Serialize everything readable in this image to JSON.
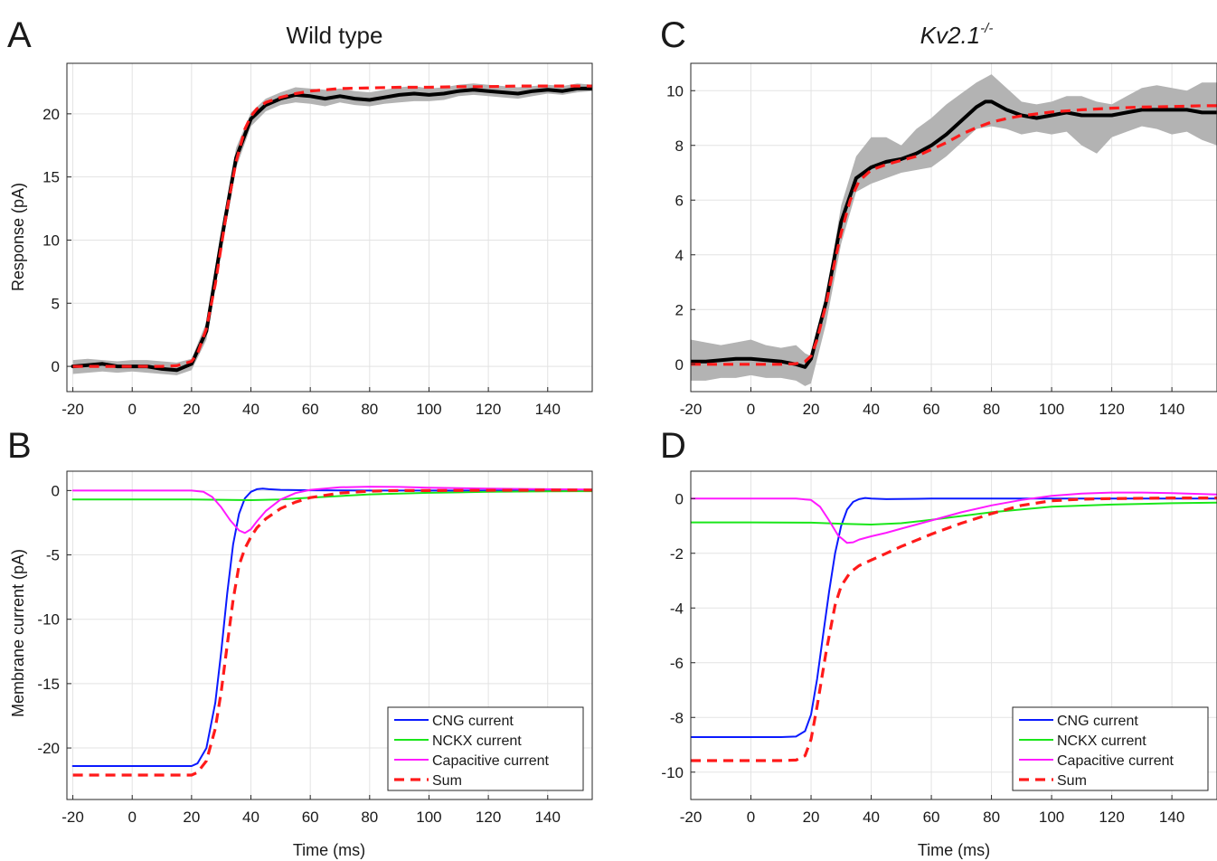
{
  "chart_data": [
    {
      "panel": "A",
      "title": "Wild type",
      "title_italic": false,
      "type": "line",
      "xlabel": "",
      "ylabel": "Response (pA)",
      "xlim": [
        -22,
        155
      ],
      "ylim": [
        -2,
        24
      ],
      "xticks": [
        -20,
        0,
        20,
        40,
        60,
        80,
        100,
        120,
        140
      ],
      "yticks": [
        0,
        5,
        10,
        15,
        20
      ],
      "grid": true,
      "band": {
        "x": [
          -20,
          -15,
          -10,
          -5,
          0,
          5,
          10,
          15,
          20,
          25,
          30,
          35,
          40,
          45,
          50,
          55,
          60,
          65,
          70,
          75,
          80,
          85,
          90,
          95,
          100,
          105,
          110,
          115,
          120,
          125,
          130,
          135,
          140,
          145,
          150,
          155
        ],
        "upper": [
          0.5,
          0.6,
          0.5,
          0.4,
          0.5,
          0.5,
          0.4,
          0.3,
          0.6,
          3.5,
          10.8,
          17.3,
          20.1,
          21.2,
          21.7,
          22.1,
          22.0,
          21.9,
          22.0,
          21.8,
          21.7,
          21.9,
          22.1,
          22.2,
          22.0,
          22.1,
          22.3,
          22.4,
          22.3,
          22.2,
          22.1,
          22.2,
          22.3,
          22.2,
          22.4,
          22.3
        ],
        "lower": [
          -0.6,
          -0.5,
          -0.4,
          -0.5,
          -0.4,
          -0.5,
          -0.6,
          -0.7,
          -0.3,
          2.1,
          9.0,
          15.7,
          19.0,
          20.2,
          20.7,
          20.9,
          20.8,
          20.6,
          20.9,
          20.7,
          20.6,
          20.8,
          20.9,
          21.0,
          21.0,
          21.1,
          21.4,
          21.5,
          21.4,
          21.3,
          21.2,
          21.4,
          21.6,
          21.5,
          21.7,
          21.8
        ]
      },
      "series": [
        {
          "color": "#000000",
          "width": 4,
          "dash": "",
          "x": [
            -20,
            -15,
            -10,
            -5,
            0,
            5,
            10,
            15,
            20,
            25,
            30,
            35,
            40,
            45,
            50,
            55,
            60,
            65,
            70,
            75,
            80,
            85,
            90,
            95,
            100,
            105,
            110,
            115,
            120,
            125,
            130,
            135,
            140,
            145,
            150,
            155
          ],
          "y": [
            0.0,
            0.1,
            0.2,
            0.0,
            0.0,
            0.0,
            -0.2,
            -0.3,
            0.2,
            2.8,
            9.9,
            16.5,
            19.6,
            20.7,
            21.2,
            21.5,
            21.4,
            21.2,
            21.4,
            21.2,
            21.1,
            21.3,
            21.5,
            21.6,
            21.5,
            21.6,
            21.8,
            21.9,
            21.8,
            21.7,
            21.6,
            21.8,
            21.9,
            21.8,
            22.0,
            22.0
          ]
        },
        {
          "color": "#ff1a1a",
          "width": 3.2,
          "dash": "11,7",
          "x": [
            -20,
            -10,
            0,
            10,
            15,
            20,
            22,
            25,
            28,
            30,
            32,
            35,
            38,
            40,
            42,
            45,
            50,
            55,
            60,
            70,
            80,
            90,
            100,
            110,
            120,
            130,
            140,
            150,
            155
          ],
          "y": [
            0.0,
            0.0,
            0.0,
            0.0,
            0.05,
            0.4,
            1.0,
            3.0,
            6.5,
            9.5,
            12.5,
            16.2,
            18.8,
            19.8,
            20.4,
            20.9,
            21.3,
            21.6,
            21.8,
            22.0,
            22.05,
            22.1,
            22.1,
            22.15,
            22.15,
            22.2,
            22.2,
            22.2,
            22.2
          ]
        }
      ],
      "legend": null
    },
    {
      "panel": "C",
      "title": "Kv2.1",
      "title_sup": "-/-",
      "title_italic": true,
      "type": "line",
      "xlabel": "",
      "ylabel": "",
      "xlim": [
        -20,
        155
      ],
      "ylim": [
        -1,
        11
      ],
      "xticks": [
        -20,
        0,
        20,
        40,
        60,
        80,
        100,
        120,
        140
      ],
      "yticks": [
        0,
        2,
        4,
        6,
        8,
        10
      ],
      "grid": true,
      "band": {
        "x": [
          -20,
          -15,
          -10,
          -5,
          0,
          5,
          10,
          15,
          18,
          20,
          25,
          30,
          35,
          40,
          45,
          50,
          55,
          60,
          65,
          70,
          75,
          80,
          85,
          90,
          95,
          100,
          105,
          110,
          115,
          120,
          125,
          130,
          135,
          140,
          145,
          150,
          155
        ],
        "upper": [
          0.9,
          0.8,
          0.7,
          0.8,
          0.9,
          0.7,
          0.6,
          0.7,
          0.4,
          0.3,
          2.5,
          5.8,
          7.6,
          8.3,
          8.3,
          8.0,
          8.6,
          9.0,
          9.5,
          9.9,
          10.3,
          10.6,
          10.1,
          9.6,
          9.5,
          9.6,
          9.8,
          9.8,
          9.6,
          9.5,
          9.8,
          10.1,
          10.2,
          10.1,
          10.0,
          10.3,
          10.3
        ],
        "lower": [
          -0.6,
          -0.6,
          -0.5,
          -0.5,
          -0.4,
          -0.5,
          -0.5,
          -0.6,
          -0.8,
          -0.7,
          1.5,
          4.4,
          6.3,
          6.6,
          6.8,
          7.0,
          7.1,
          7.2,
          7.6,
          8.1,
          8.6,
          8.7,
          8.6,
          8.4,
          8.5,
          8.4,
          8.5,
          8.0,
          7.7,
          8.3,
          8.5,
          8.7,
          8.6,
          8.4,
          8.5,
          8.2,
          8.0
        ]
      },
      "series": [
        {
          "color": "#000000",
          "width": 4,
          "dash": "",
          "x": [
            -20,
            -15,
            -10,
            -5,
            0,
            5,
            10,
            15,
            18,
            20,
            25,
            30,
            35,
            40,
            45,
            50,
            55,
            60,
            65,
            70,
            75,
            78,
            80,
            85,
            90,
            95,
            100,
            105,
            110,
            115,
            120,
            125,
            130,
            135,
            140,
            145,
            150,
            155
          ],
          "y": [
            0.1,
            0.1,
            0.15,
            0.2,
            0.2,
            0.15,
            0.1,
            0.0,
            -0.1,
            0.2,
            2.3,
            5.2,
            6.8,
            7.2,
            7.4,
            7.5,
            7.7,
            8.0,
            8.4,
            8.9,
            9.4,
            9.6,
            9.6,
            9.3,
            9.1,
            9.0,
            9.1,
            9.2,
            9.1,
            9.1,
            9.1,
            9.2,
            9.3,
            9.3,
            9.3,
            9.3,
            9.2,
            9.2
          ]
        },
        {
          "color": "#ff1a1a",
          "width": 3.2,
          "dash": "11,7",
          "x": [
            -20,
            -10,
            0,
            10,
            15,
            18,
            20,
            22,
            25,
            28,
            30,
            33,
            36,
            40,
            45,
            50,
            55,
            60,
            65,
            70,
            75,
            80,
            85,
            90,
            100,
            110,
            120,
            130,
            140,
            150,
            155
          ],
          "y": [
            0.0,
            0.0,
            0.0,
            0.0,
            0.02,
            0.1,
            0.3,
            0.9,
            2.2,
            3.8,
            4.8,
            6.0,
            6.7,
            7.1,
            7.3,
            7.45,
            7.6,
            7.85,
            8.1,
            8.4,
            8.65,
            8.85,
            8.98,
            9.08,
            9.22,
            9.3,
            9.36,
            9.4,
            9.42,
            9.45,
            9.45
          ]
        }
      ],
      "legend": null
    },
    {
      "panel": "B",
      "title": "",
      "type": "line",
      "xlabel": "Time (ms)",
      "ylabel": "Membrane current (pA)",
      "xlim": [
        -22,
        155
      ],
      "ylim": [
        -24,
        1.5
      ],
      "xticks": [
        -20,
        0,
        20,
        40,
        60,
        80,
        100,
        120,
        140
      ],
      "yticks": [
        0,
        -5,
        -10,
        -15,
        -20
      ],
      "grid": true,
      "band": null,
      "series": [
        {
          "name": "CNG current",
          "color": "#0a1aff",
          "width": 2,
          "dash": "",
          "x": [
            -20,
            0,
            10,
            20,
            22,
            25,
            28,
            30,
            32,
            34,
            36,
            38,
            40,
            42,
            44,
            46,
            50,
            60,
            80,
            100,
            120,
            140,
            155
          ],
          "y": [
            -21.4,
            -21.4,
            -21.4,
            -21.4,
            -21.2,
            -20.0,
            -16.5,
            -12.5,
            -8.0,
            -4.2,
            -1.8,
            -0.6,
            -0.1,
            0.1,
            0.15,
            0.1,
            0.05,
            0.02,
            0.0,
            0.0,
            0.0,
            0.0,
            0.0
          ]
        },
        {
          "name": "NCKX current",
          "color": "#1ae61a",
          "width": 2,
          "dash": "",
          "x": [
            -20,
            0,
            20,
            30,
            40,
            50,
            60,
            80,
            100,
            120,
            140,
            155
          ],
          "y": [
            -0.7,
            -0.7,
            -0.7,
            -0.72,
            -0.75,
            -0.7,
            -0.55,
            -0.3,
            -0.18,
            -0.1,
            -0.06,
            -0.05
          ]
        },
        {
          "name": "Capacitive current",
          "color": "#ff1aff",
          "width": 2,
          "dash": "",
          "x": [
            -20,
            0,
            20,
            24,
            27,
            30,
            33,
            36,
            38,
            40,
            42,
            45,
            50,
            55,
            60,
            70,
            80,
            90,
            100,
            120,
            140,
            155
          ],
          "y": [
            0.0,
            0.0,
            0.0,
            -0.1,
            -0.5,
            -1.3,
            -2.3,
            -3.1,
            -3.3,
            -3.0,
            -2.4,
            -1.6,
            -0.7,
            -0.2,
            0.05,
            0.25,
            0.3,
            0.28,
            0.22,
            0.15,
            0.1,
            0.08
          ]
        },
        {
          "name": "Sum",
          "color": "#ff1a1a",
          "width": 3.2,
          "dash": "11,7",
          "x": [
            -20,
            0,
            10,
            20,
            22,
            25,
            28,
            30,
            32,
            34,
            36,
            38,
            40,
            42,
            45,
            50,
            55,
            60,
            70,
            80,
            90,
            100,
            120,
            140,
            155
          ],
          "y": [
            -22.1,
            -22.1,
            -22.1,
            -22.1,
            -21.9,
            -21.0,
            -18.5,
            -15.6,
            -12.0,
            -8.5,
            -5.8,
            -4.5,
            -3.6,
            -2.9,
            -2.2,
            -1.4,
            -0.9,
            -0.55,
            -0.2,
            -0.05,
            0.0,
            0.0,
            0.02,
            0.03,
            0.03
          ]
        }
      ],
      "legend": {
        "position": "bottom-right",
        "entries": [
          "CNG current",
          "NCKX current",
          "Capacitive current",
          "Sum"
        ]
      }
    },
    {
      "panel": "D",
      "title": "",
      "type": "line",
      "xlabel": "Time (ms)",
      "ylabel": "",
      "xlim": [
        -20,
        155
      ],
      "ylim": [
        -11,
        1
      ],
      "xticks": [
        -20,
        0,
        20,
        40,
        60,
        80,
        100,
        120,
        140
      ],
      "yticks": [
        0,
        -2,
        -4,
        -6,
        -8,
        -10
      ],
      "grid": true,
      "band": null,
      "series": [
        {
          "name": "CNG current",
          "color": "#0a1aff",
          "width": 2,
          "dash": "",
          "x": [
            -20,
            0,
            10,
            15,
            18,
            20,
            22,
            24,
            26,
            28,
            30,
            32,
            34,
            36,
            38,
            40,
            45,
            60,
            80,
            100,
            120,
            140,
            155
          ],
          "y": [
            -8.72,
            -8.72,
            -8.72,
            -8.7,
            -8.5,
            -7.9,
            -6.6,
            -5.0,
            -3.4,
            -2.0,
            -1.0,
            -0.4,
            -0.12,
            -0.02,
            0.02,
            0.0,
            -0.02,
            0.0,
            0.0,
            0.0,
            0.0,
            0.0,
            0.0
          ]
        },
        {
          "name": "NCKX current",
          "color": "#1ae61a",
          "width": 2,
          "dash": "",
          "x": [
            -20,
            0,
            20,
            30,
            40,
            50,
            60,
            80,
            100,
            120,
            140,
            155
          ],
          "y": [
            -0.87,
            -0.87,
            -0.88,
            -0.92,
            -0.95,
            -0.9,
            -0.78,
            -0.5,
            -0.3,
            -0.22,
            -0.17,
            -0.15
          ]
        },
        {
          "name": "Capacitive current",
          "color": "#ff1aff",
          "width": 2,
          "dash": "",
          "x": [
            -20,
            0,
            15,
            20,
            23,
            26,
            29,
            32,
            34,
            36,
            40,
            45,
            50,
            60,
            70,
            80,
            90,
            100,
            110,
            120,
            130,
            140,
            155
          ],
          "y": [
            0.0,
            0.0,
            0.0,
            -0.05,
            -0.3,
            -0.8,
            -1.35,
            -1.62,
            -1.6,
            -1.5,
            -1.38,
            -1.25,
            -1.1,
            -0.8,
            -0.5,
            -0.25,
            -0.05,
            0.1,
            0.18,
            0.22,
            0.22,
            0.2,
            0.15
          ]
        },
        {
          "name": "Sum",
          "color": "#ff1a1a",
          "width": 3.2,
          "dash": "11,7",
          "x": [
            -20,
            0,
            10,
            15,
            18,
            20,
            22,
            25,
            28,
            30,
            33,
            36,
            40,
            45,
            50,
            60,
            70,
            80,
            90,
            100,
            110,
            120,
            140,
            155
          ],
          "y": [
            -9.58,
            -9.58,
            -9.58,
            -9.56,
            -9.4,
            -8.8,
            -7.6,
            -5.6,
            -3.9,
            -3.2,
            -2.7,
            -2.45,
            -2.25,
            -2.0,
            -1.75,
            -1.3,
            -0.9,
            -0.55,
            -0.25,
            -0.08,
            -0.02,
            0.0,
            0.02,
            0.02
          ]
        }
      ],
      "legend": {
        "position": "bottom-right",
        "entries": [
          "CNG current",
          "NCKX current",
          "Capacitive current",
          "Sum"
        ]
      }
    }
  ]
}
